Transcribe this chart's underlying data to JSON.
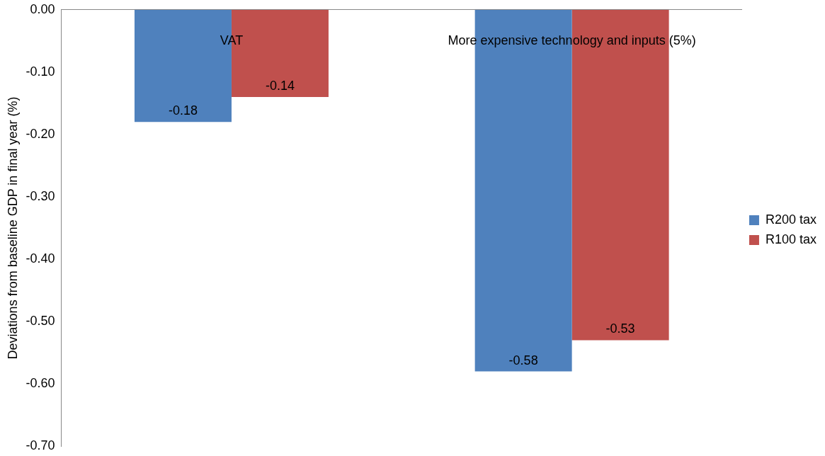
{
  "chart_data": {
    "type": "bar",
    "ylabel": "Deviations from baseline GDP in final year (%)",
    "categories": [
      "VAT",
      "More expensive technology and inputs (5%)"
    ],
    "series": [
      {
        "name": "R200 tax",
        "color": "#4f81bd",
        "values": [
          -0.18,
          -0.58
        ]
      },
      {
        "name": "R100 tax",
        "color": "#c0504d",
        "values": [
          -0.14,
          -0.53
        ]
      }
    ],
    "ylim": [
      -0.7,
      0
    ],
    "yticks": [
      {
        "value": 0,
        "label": "0.00"
      },
      {
        "value": -0.1,
        "label": "-0.10"
      },
      {
        "value": -0.2,
        "label": "-0.20"
      },
      {
        "value": -0.3,
        "label": "-0.30"
      },
      {
        "value": -0.4,
        "label": "-0.40"
      },
      {
        "value": -0.5,
        "label": "-0.50"
      },
      {
        "value": -0.6,
        "label": "-0.60"
      },
      {
        "value": -0.7,
        "label": "-0.70"
      }
    ],
    "grid": false,
    "legend": "right",
    "data_labels": true
  }
}
